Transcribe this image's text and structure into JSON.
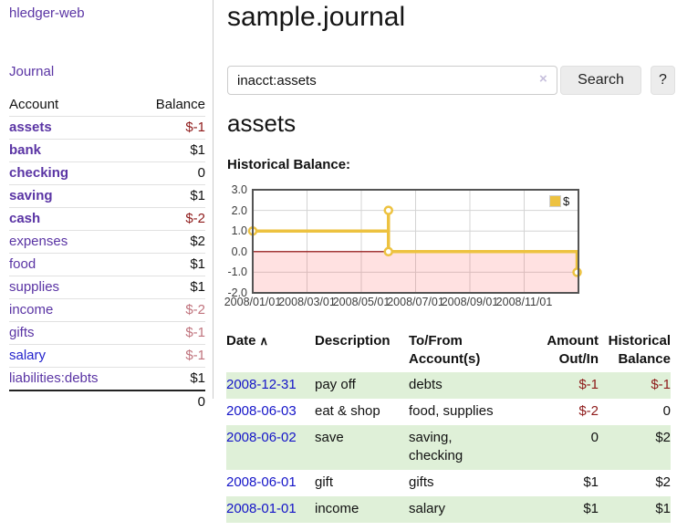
{
  "app": {
    "brand": "hledger-web"
  },
  "nav": {
    "journal": "Journal"
  },
  "sidebar": {
    "account_header": "Account",
    "balance_header": "Balance",
    "accounts": [
      {
        "label": "assets",
        "balance": "$-1",
        "indent": 0,
        "label_class": "purple bold",
        "bal_class": "neg bold"
      },
      {
        "label": "bank",
        "balance": "$1",
        "indent": 1,
        "label_class": "purple bold",
        "bal_class": "bold"
      },
      {
        "label": "checking",
        "balance": "0",
        "indent": 2,
        "label_class": "purple bold",
        "bal_class": "bold"
      },
      {
        "label": "saving",
        "balance": "$1",
        "indent": 2,
        "label_class": "purple bold",
        "bal_class": "bold"
      },
      {
        "label": "cash",
        "balance": "$-2",
        "indent": 1,
        "label_class": "purple bold",
        "bal_class": "neg bold"
      },
      {
        "label": "expenses",
        "balance": "$2",
        "indent": 0,
        "label_class": "purple",
        "bal_class": ""
      },
      {
        "label": "food",
        "balance": "$1",
        "indent": 1,
        "label_class": "purple",
        "bal_class": ""
      },
      {
        "label": "supplies",
        "balance": "$1",
        "indent": 1,
        "label_class": "purple",
        "bal_class": ""
      },
      {
        "label": "income",
        "balance": "$-2",
        "indent": 0,
        "label_class": "purple",
        "bal_class": "rose"
      },
      {
        "label": "gifts",
        "balance": "$-1",
        "indent": 1,
        "label_class": "purple",
        "bal_class": "rose"
      },
      {
        "label": "salary",
        "balance": "$-1",
        "indent": 1,
        "label_class": "blue",
        "bal_class": "rose"
      },
      {
        "label": "liabilities:debts",
        "balance": "$1",
        "indent": 0,
        "label_class": "purple",
        "bal_class": ""
      }
    ],
    "total": "0"
  },
  "header": {
    "title": "sample.journal"
  },
  "search": {
    "value": "inacct:assets",
    "clear_icon": "×",
    "button": "Search",
    "help": "?"
  },
  "account_view": {
    "heading": "assets",
    "chart_title": "Historical Balance:"
  },
  "chart_data": {
    "type": "line",
    "title": "Historical Balance:",
    "legend": {
      "label": "$",
      "color": "#edc240",
      "position": "top-right"
    },
    "series": [
      {
        "name": "$",
        "points": [
          [
            "2008-01-01",
            1
          ],
          [
            "2008-06-01",
            2
          ],
          [
            "2008-06-03",
            0
          ],
          [
            "2008-12-31",
            -1
          ]
        ]
      }
    ],
    "step_line_months": [
      [
        0,
        1
      ],
      [
        5,
        1
      ],
      [
        5,
        2
      ],
      [
        5,
        0
      ],
      [
        11.95,
        0
      ],
      [
        11.95,
        -1
      ]
    ],
    "marker_months": [
      [
        0,
        1
      ],
      [
        5,
        2
      ],
      [
        5,
        0
      ],
      [
        11.95,
        -1
      ]
    ],
    "y_ticks": [
      {
        "label": "3.0",
        "v": 3
      },
      {
        "label": "2.0",
        "v": 2
      },
      {
        "label": "1.0",
        "v": 1
      },
      {
        "label": "0.0",
        "v": 0
      },
      {
        "label": "-1.0",
        "v": -1
      },
      {
        "label": "-2.0",
        "v": -2
      }
    ],
    "x_ticks": [
      {
        "label": "2008/01/01",
        "month": 0
      },
      {
        "label": "2008/03/01",
        "month": 2
      },
      {
        "label": "2008/05/01",
        "month": 4
      },
      {
        "label": "2008/07/01",
        "month": 6
      },
      {
        "label": "2008/09/01",
        "month": 8
      },
      {
        "label": "2008/11/01",
        "month": 10
      }
    ],
    "ylim": [
      -2,
      3
    ],
    "xlim_months": [
      0,
      12
    ],
    "grid": true,
    "line_color": "#edc240",
    "negative_region_fill": "#fddedd",
    "zero_line_color": "#8b0000"
  },
  "register": {
    "headers": {
      "date": "Date",
      "sort_icon": "∧",
      "description": "Description",
      "tofrom_line1": "To/From",
      "tofrom_line2": "Account(s)",
      "amount_line1": "Amount",
      "amount_line2": "Out/In",
      "hist_line1": "Historical",
      "hist_line2": "Balance"
    },
    "rows": [
      {
        "date": "2008-12-31",
        "description": "pay off",
        "account_lines": [
          "debts"
        ],
        "amount": "$-1",
        "amount_neg": true,
        "balance": "$-1",
        "balance_neg": true,
        "stripe": true
      },
      {
        "date": "2008-06-03",
        "description": "eat & shop",
        "account_lines": [
          "food, supplies"
        ],
        "amount": "$-2",
        "amount_neg": true,
        "balance": "0",
        "balance_neg": false,
        "stripe": false
      },
      {
        "date": "2008-06-02",
        "description": "save",
        "account_lines": [
          "saving,",
          "checking"
        ],
        "amount": "0",
        "amount_neg": false,
        "balance": "$2",
        "balance_neg": false,
        "stripe": true
      },
      {
        "date": "2008-06-01",
        "description": "gift",
        "account_lines": [
          "gifts"
        ],
        "amount": "$1",
        "amount_neg": false,
        "balance": "$2",
        "balance_neg": false,
        "stripe": false
      },
      {
        "date": "2008-01-01",
        "description": "income",
        "account_lines": [
          "salary"
        ],
        "amount": "$1",
        "amount_neg": false,
        "balance": "$1",
        "balance_neg": false,
        "stripe": true
      }
    ]
  },
  "colors": {
    "link_purple": "#5a34a4",
    "link_blue": "#2323cc",
    "negative_dark": "#8e1a1a",
    "negative_muted": "#c0737d",
    "row_stripe_green": "#dff0d8",
    "series_gold": "#edc240"
  }
}
